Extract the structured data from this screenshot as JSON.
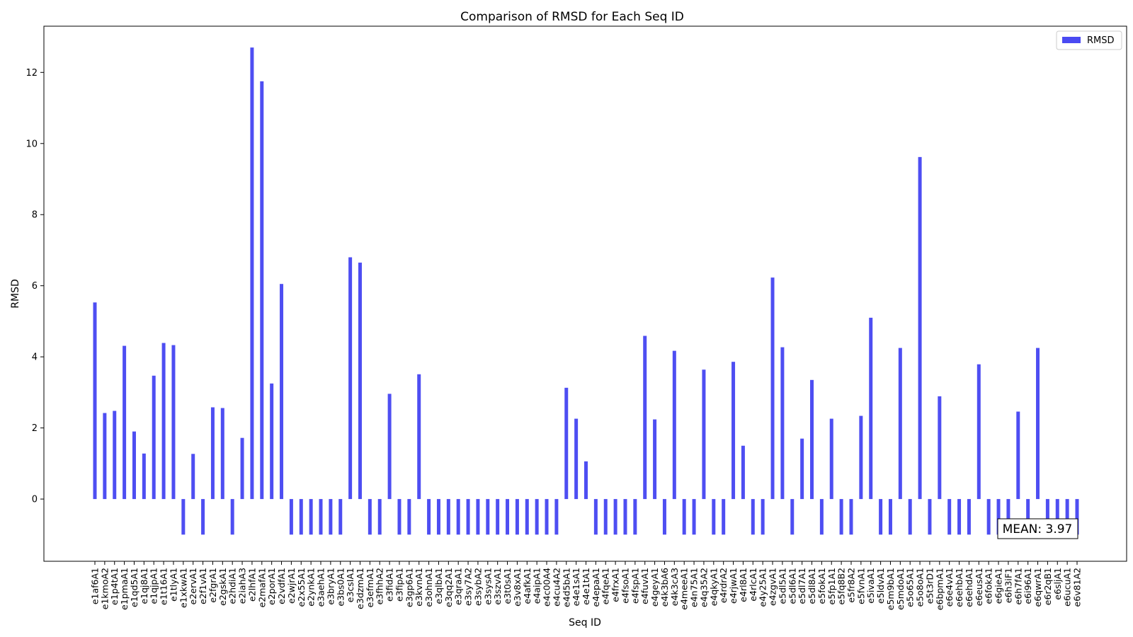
{
  "chart_data": {
    "type": "bar",
    "title": "Comparison of RMSD for Each Seq ID",
    "xlabel": "Seq ID",
    "ylabel": "RMSD",
    "ylim": [
      -1.75,
      13.3
    ],
    "yticks": [
      0,
      2,
      4,
      6,
      8,
      10,
      12
    ],
    "grid": false,
    "legend": {
      "placement": "top-right",
      "entries": [
        "RMSD"
      ]
    },
    "annotation": "MEAN: 3.97",
    "colors": {
      "bar": "#4a4af2",
      "axis": "#000000"
    },
    "categories": [
      "e1af6A1",
      "e1kmoA2",
      "e1p4tA1",
      "e1pmaA1",
      "e1qd5A1",
      "e1qj8A1",
      "e1qjpA1",
      "e1t16A1",
      "e1tlyA1",
      "e1xkwA1",
      "e2ervA1",
      "e2f1vA1",
      "e2fgrA1",
      "e2gskA1",
      "e2hdiA1",
      "e2iahA3",
      "e2lhfA1",
      "e2mafA1",
      "e2porA1",
      "e2vdfA1",
      "e2wjrA1",
      "e2x55A1",
      "e2ynkA1",
      "e3aehA1",
      "e3bryA1",
      "e3bs0A1",
      "e3csIA1",
      "e3dzmA1",
      "e3efmA1",
      "e3fhhA2",
      "e3fidA1",
      "e3fipA1",
      "e3gp6A1",
      "e3kvnA1",
      "e3ohnA1",
      "e3qlbA1",
      "e3qq2A1",
      "e3qraA1",
      "e3sy7A2",
      "e3sybA2",
      "e3sysA1",
      "e3szvA1",
      "e3t0sA1",
      "e3v8xA1",
      "e4afkA1",
      "e4aipA1",
      "e4c00A4",
      "e4cu4A2",
      "e4d5bA1",
      "e4e1sA1",
      "e4e1tA1",
      "e4epaA1",
      "e4fqeA1",
      "e4frxA1",
      "e4fsoA1",
      "e4fspA1",
      "e4fuvA1",
      "e4geyA1",
      "e4k3bA6",
      "e4k3cA3",
      "e4meeA1",
      "e4n75A1",
      "e4q35A2",
      "e4qkyA1",
      "e4rdrA2",
      "e4rjwA1",
      "e4rl8A1",
      "e4rlcA1",
      "e4y25A1",
      "e4zgvA1",
      "e5dl5A1",
      "e5dl6A1",
      "e5dl7A1",
      "e5dl8A1",
      "e5fokA1",
      "e5fp1A1",
      "e5fq8B2",
      "e5fr8A2",
      "e5fvnA1",
      "e5ivaA1",
      "e5ldvA1",
      "e5m9bA1",
      "e5mdoA1",
      "e5o65A1",
      "e5o8oA1",
      "e5t3rD1",
      "e6bpmA1",
      "e6e4vA1",
      "e6ehbA1",
      "e6ehdA1",
      "e6eusA1",
      "e6fokA1",
      "e6gieA1",
      "e6h3iF1",
      "e6h7fA1",
      "e6i96A1",
      "e6qwrA1",
      "e6r2qB1",
      "e6sljA1",
      "e6ucuA1",
      "e6v81A2"
    ],
    "series": [
      {
        "name": "RMSD",
        "values": [
          5.53,
          2.42,
          2.48,
          4.31,
          1.9,
          1.28,
          3.47,
          4.39,
          4.33,
          -1,
          1.27,
          -1,
          2.58,
          2.56,
          -1,
          1.72,
          12.7,
          11.75,
          3.25,
          6.05,
          -1,
          -1,
          -1,
          -1,
          -1,
          -1,
          6.8,
          6.65,
          -1,
          -1,
          2.96,
          -1,
          -1,
          3.51,
          -1,
          -1,
          -1,
          -1,
          -1,
          -1,
          -1,
          -1,
          -1,
          -1,
          -1,
          -1,
          -1,
          -1,
          3.13,
          2.26,
          1.06,
          -1,
          -1,
          -1,
          -1,
          -1,
          4.59,
          2.24,
          -1,
          4.17,
          -1,
          -1,
          3.64,
          -1,
          -1,
          3.86,
          1.5,
          -1,
          -1,
          6.23,
          4.27,
          -1,
          1.7,
          3.35,
          -1,
          2.26,
          -1,
          -1,
          2.34,
          5.1,
          -1,
          -1,
          4.25,
          -1,
          9.62,
          -1,
          2.89,
          -1,
          -1,
          -1,
          3.79,
          -1,
          -1,
          -1,
          2.46,
          -1,
          4.25,
          -1,
          -1,
          -1,
          -1
        ]
      }
    ]
  }
}
